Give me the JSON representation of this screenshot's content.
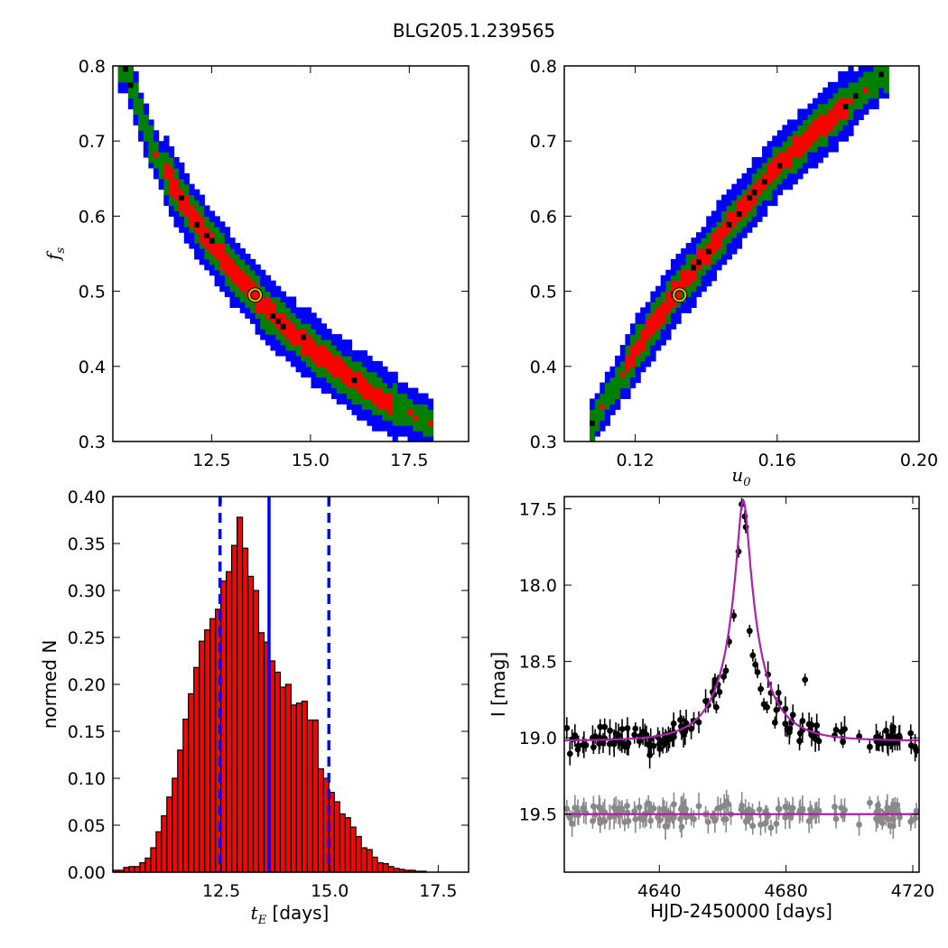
{
  "title": "BLG205.1.239565",
  "colors": {
    "blue": "#0000ff",
    "green": "#007f00",
    "red": "#ff0000",
    "black": "#000000",
    "best_fit_ring": "#cccc00",
    "model": "#aa22aa",
    "baseline_points": "#888888"
  },
  "chart_data": [
    {
      "type": "heatmap",
      "panel": "top-left",
      "xlabel": "",
      "ylabel": "f_s",
      "xlim": [
        10.0,
        19.0
      ],
      "ylim": [
        0.3,
        0.8
      ],
      "xticks": [
        "12.5",
        "15.0",
        "17.5"
      ],
      "yticks": [
        "0.3",
        "0.4",
        "0.5",
        "0.6",
        "0.7",
        "0.8"
      ],
      "confidence_regions": [
        "blue",
        "green",
        "red",
        "black"
      ],
      "ridge": [
        [
          10.3,
          0.8
        ],
        [
          11.0,
          0.69
        ],
        [
          12.0,
          0.6
        ],
        [
          13.0,
          0.53
        ],
        [
          14.0,
          0.47
        ],
        [
          15.0,
          0.425
        ],
        [
          16.0,
          0.385
        ],
        [
          17.0,
          0.35
        ],
        [
          18.0,
          0.325
        ]
      ],
      "best_fit": {
        "x": 13.6,
        "y": 0.495
      }
    },
    {
      "type": "heatmap",
      "panel": "top-right",
      "xlabel": "u_0",
      "ylabel": "",
      "xlim": [
        0.1,
        0.2
      ],
      "ylim": [
        0.3,
        0.8
      ],
      "xticks": [
        "0.12",
        "0.16",
        "0.20"
      ],
      "yticks": [
        "0.3",
        "0.4",
        "0.5",
        "0.6",
        "0.7",
        "0.8"
      ],
      "confidence_regions": [
        "blue",
        "green",
        "red",
        "black"
      ],
      "ridge": [
        [
          0.108,
          0.325
        ],
        [
          0.12,
          0.42
        ],
        [
          0.13,
          0.49
        ],
        [
          0.14,
          0.55
        ],
        [
          0.15,
          0.61
        ],
        [
          0.16,
          0.665
        ],
        [
          0.17,
          0.71
        ],
        [
          0.18,
          0.75
        ],
        [
          0.19,
          0.79
        ]
      ],
      "best_fit": {
        "x": 0.1325,
        "y": 0.495
      }
    },
    {
      "type": "bar",
      "panel": "bottom-left",
      "xlabel": "t_E  [days]",
      "ylabel": "normed N",
      "xlim": [
        10.0,
        18.2
      ],
      "ylim": [
        0.0,
        0.4
      ],
      "xticks": [
        "12.5",
        "15.0",
        "17.5"
      ],
      "yticks": [
        "0.00",
        "0.05",
        "0.10",
        "0.15",
        "0.20",
        "0.25",
        "0.30",
        "0.35",
        "0.40"
      ],
      "bin_start": 10.0,
      "bin_width": 0.1245,
      "values": [
        0.002,
        0.002,
        0.005,
        0.006,
        0.006,
        0.01,
        0.015,
        0.026,
        0.043,
        0.06,
        0.08,
        0.1,
        0.13,
        0.163,
        0.19,
        0.218,
        0.246,
        0.258,
        0.27,
        0.28,
        0.31,
        0.32,
        0.348,
        0.378,
        0.345,
        0.315,
        0.3,
        0.255,
        0.245,
        0.225,
        0.213,
        0.197,
        0.2,
        0.178,
        0.18,
        0.182,
        0.162,
        0.162,
        0.11,
        0.1,
        0.085,
        0.075,
        0.062,
        0.058,
        0.048,
        0.038,
        0.026,
        0.024,
        0.016,
        0.01,
        0.009,
        0.006,
        0.004,
        0.003,
        0.002,
        0.002,
        0.001,
        0.001
      ],
      "vlines": [
        {
          "x": 12.47,
          "style": "dashed"
        },
        {
          "x": 13.6,
          "style": "solid"
        },
        {
          "x": 14.98,
          "style": "dashed"
        }
      ]
    },
    {
      "type": "scatter",
      "panel": "bottom-right",
      "xlabel": "HJD-2450000 [days]",
      "ylabel": "I [mag]",
      "xlim": [
        4610,
        4722
      ],
      "ylim": [
        19.88,
        17.42
      ],
      "y_inverted": true,
      "xticks": [
        "4640",
        "4680",
        "4720"
      ],
      "yticks": [
        "17.5",
        "18.0",
        "18.5",
        "19.0",
        "19.5"
      ],
      "model": {
        "t0": 4666.5,
        "tE": 13.6,
        "u0": 0.1325,
        "fs": 0.495,
        "I_baseline": 19.02
      },
      "baseline_model_mag": 19.5,
      "peak_points": [
        [
          4666.0,
          17.47
        ],
        [
          4667.0,
          17.55
        ],
        [
          4667.3,
          17.62
        ],
        [
          4665.0,
          17.78
        ],
        [
          4663.5,
          18.2
        ],
        [
          4668.5,
          18.3
        ],
        [
          4662.0,
          18.37
        ],
        [
          4669.5,
          18.46
        ],
        [
          4661.0,
          18.56
        ],
        [
          4660.3,
          18.6
        ],
        [
          4670.3,
          18.52
        ],
        [
          4671.0,
          18.57
        ],
        [
          4658.0,
          18.8
        ],
        [
          4659.0,
          18.7
        ],
        [
          4672.0,
          18.68
        ],
        [
          4673.0,
          18.78
        ],
        [
          4674.0,
          18.8
        ],
        [
          4686.0,
          18.62
        ],
        [
          4676.5,
          18.9
        ]
      ]
    }
  ]
}
